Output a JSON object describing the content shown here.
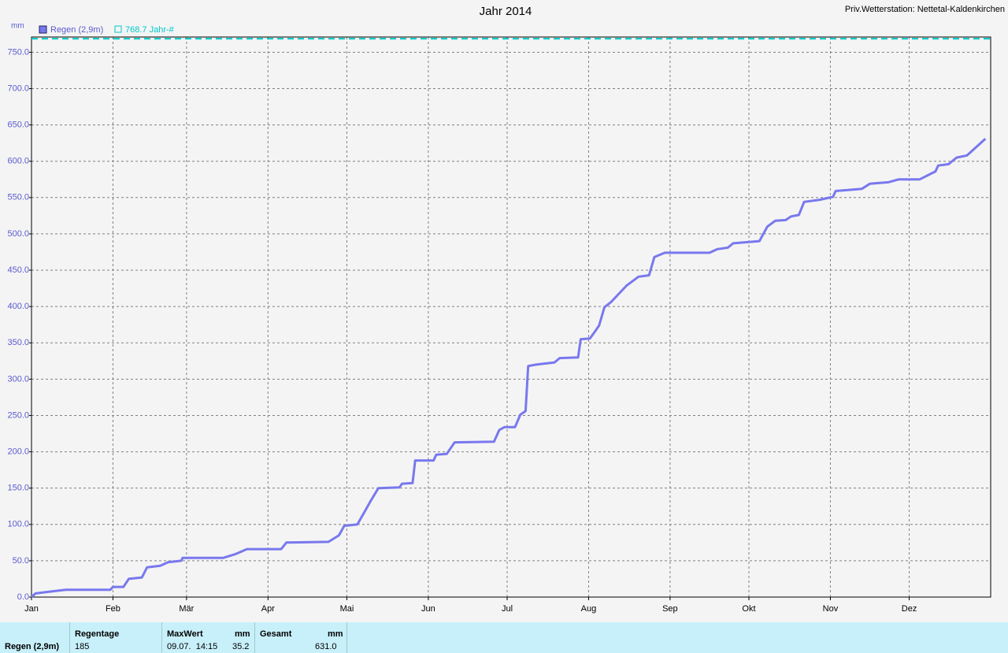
{
  "chart_data": {
    "type": "line",
    "title": "Jahr 2014",
    "subtitle": "Priv.Wetterstation: Nettetal-Kaldenkirchen",
    "y_label": "mm",
    "x": [
      0,
      1.5,
      6,
      13,
      30,
      31,
      35,
      37,
      42,
      44,
      49,
      52,
      57,
      57.5,
      73,
      77.5,
      82,
      95,
      97,
      113,
      117,
      119,
      124,
      127,
      129,
      132,
      140,
      141,
      145,
      146,
      153,
      154,
      158,
      161,
      176,
      178,
      180,
      184,
      186,
      188,
      189,
      192,
      199,
      201,
      208,
      209,
      212.5,
      214.5,
      216,
      218,
      220.5,
      226.5,
      231,
      235,
      237,
      241,
      258,
      261,
      265,
      267,
      277,
      280,
      283,
      287,
      289,
      292,
      294,
      300,
      305,
      306,
      316,
      319,
      326,
      330,
      338,
      344,
      345,
      349,
      352,
      356,
      360,
      363
    ],
    "series": [
      {
        "name": "Regen (2,9m)",
        "color": "#7878ee",
        "values": [
          0,
          5,
          7,
          10,
          10,
          14,
          14,
          25,
          27,
          41,
          43,
          48,
          50,
          54,
          54,
          59,
          66,
          66,
          75,
          76,
          85,
          98,
          100,
          119,
          132,
          150,
          151,
          156,
          157,
          188,
          188,
          196,
          197,
          213,
          214,
          230,
          234,
          234,
          251,
          256,
          318,
          320,
          323,
          329,
          330,
          355,
          356,
          366,
          374,
          399,
          406,
          429,
          441,
          443,
          468,
          474,
          474,
          479,
          481,
          487,
          490,
          510,
          518,
          519,
          524,
          526,
          544,
          547,
          551,
          559,
          562,
          569,
          571,
          575,
          575,
          586,
          594,
          596,
          605,
          608,
          621,
          631
        ]
      }
    ],
    "reference_lines": [
      {
        "name": "768.7 Jahr-#",
        "value": 768.7,
        "color": "#00c8c8"
      }
    ],
    "xlim": [
      0,
      365
    ],
    "xticks": [
      {
        "value": 0,
        "label": "Jan"
      },
      {
        "value": 31,
        "label": "Feb"
      },
      {
        "value": 59,
        "label": "Mär"
      },
      {
        "value": 90,
        "label": "Apr"
      },
      {
        "value": 120,
        "label": "Mai"
      },
      {
        "value": 151,
        "label": "Jun"
      },
      {
        "value": 181,
        "label": "Jul"
      },
      {
        "value": 212,
        "label": "Aug"
      },
      {
        "value": 243,
        "label": "Sep"
      },
      {
        "value": 273,
        "label": "Okt"
      },
      {
        "value": 304,
        "label": "Nov"
      },
      {
        "value": 334,
        "label": "Dez"
      }
    ],
    "ylim": [
      0,
      771
    ],
    "yticks": [
      {
        "value": 0,
        "label": "0.0"
      },
      {
        "value": 50,
        "label": "50.0"
      },
      {
        "value": 100,
        "label": "100.0"
      },
      {
        "value": 150,
        "label": "150.0"
      },
      {
        "value": 200,
        "label": "200.0"
      },
      {
        "value": 250,
        "label": "250.0"
      },
      {
        "value": 300,
        "label": "300.0"
      },
      {
        "value": 350,
        "label": "350.0"
      },
      {
        "value": 400,
        "label": "400.0"
      },
      {
        "value": 450,
        "label": "450.0"
      },
      {
        "value": 500,
        "label": "500.0"
      },
      {
        "value": 550,
        "label": "550.0"
      },
      {
        "value": 600,
        "label": "600.0"
      },
      {
        "value": 650,
        "label": "650.0"
      },
      {
        "value": 700,
        "label": "700.0"
      },
      {
        "value": 750,
        "label": "750.0"
      }
    ],
    "grid": true
  },
  "summary": {
    "row_label": "Regen (2,9m)",
    "regentage": {
      "header": "Regentage",
      "value": "185"
    },
    "maxwert": {
      "header": "MaxWert",
      "unit": "mm",
      "time": "09.07.  14:15",
      "value": "35.2"
    },
    "gesamt": {
      "header": "Gesamt",
      "unit": "mm",
      "value": "631.0"
    }
  }
}
